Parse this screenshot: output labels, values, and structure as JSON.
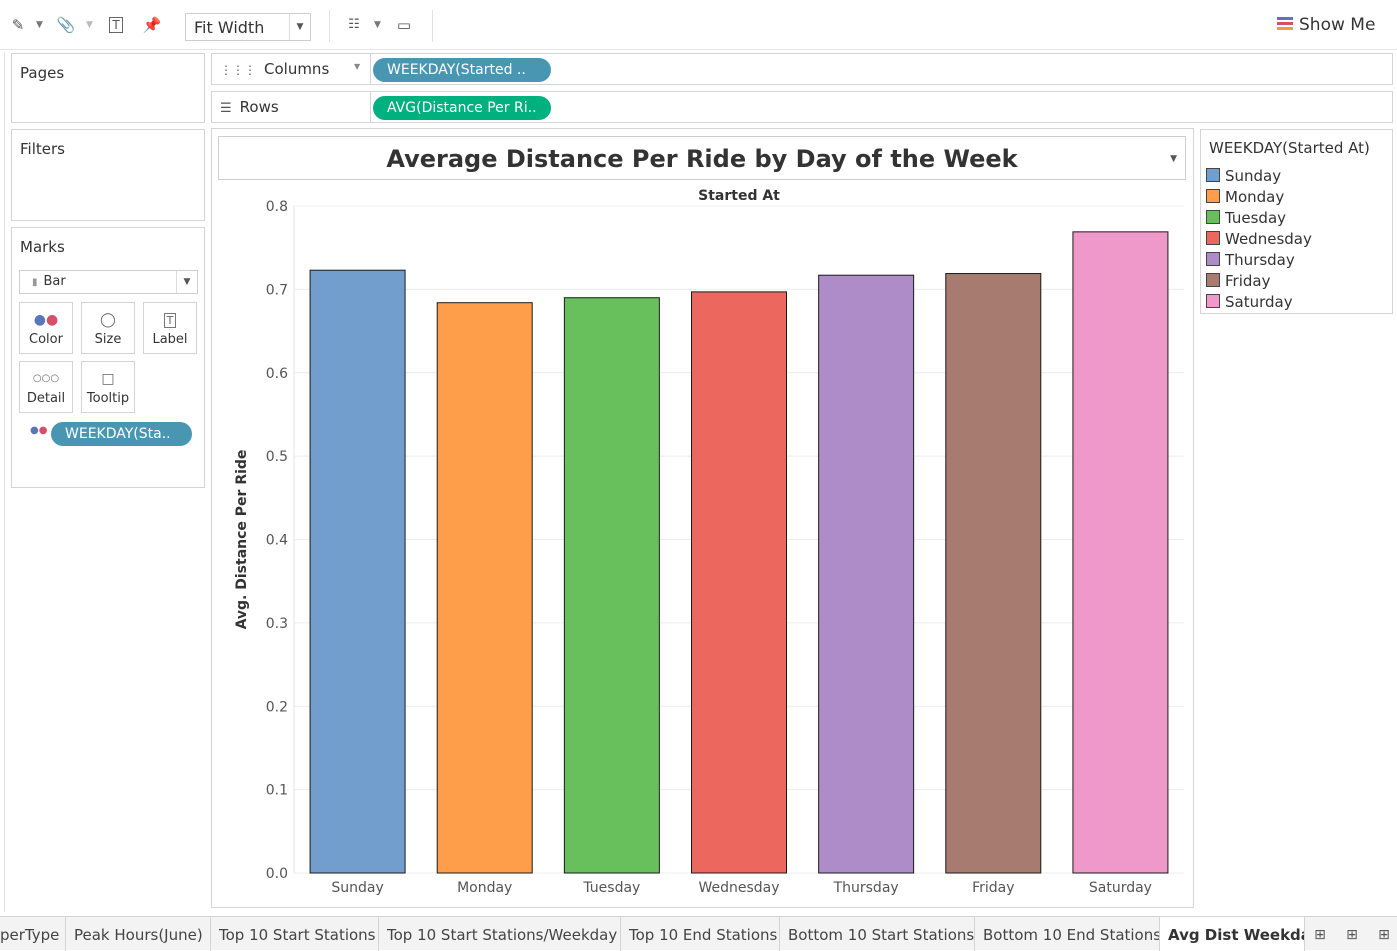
{
  "toolbar": {
    "fit_mode": "Fit Width",
    "show_me_label": "Show Me"
  },
  "panes": {
    "pages_label": "Pages",
    "filters_label": "Filters",
    "marks_label": "Marks",
    "mark_type": "Bar",
    "mark_buttons": [
      "Color",
      "Size",
      "Label",
      "Detail",
      "Tooltip"
    ],
    "color_pill": "WEEKDAY(Sta.."
  },
  "shelves": {
    "columns_label": "Columns",
    "columns_pill": "WEEKDAY(Started ..",
    "rows_label": "Rows",
    "rows_pill": "AVG(Distance Per Ri.."
  },
  "legend": {
    "title": "WEEKDAY(Started At)",
    "items": [
      {
        "label": "Sunday",
        "color": "#719ecd"
      },
      {
        "label": "Monday",
        "color": "#fe9e4b"
      },
      {
        "label": "Tuesday",
        "color": "#68c05d"
      },
      {
        "label": "Wednesday",
        "color": "#ec675e"
      },
      {
        "label": "Thursday",
        "color": "#ae8cc8"
      },
      {
        "label": "Friday",
        "color": "#a77b6f"
      },
      {
        "label": "Saturday",
        "color": "#ef98ca"
      }
    ]
  },
  "chart_data": {
    "type": "bar",
    "title": "Average Distance Per Ride by Day of the Week",
    "header": "Started At",
    "xlabel": "",
    "ylabel": "Avg. Distance Per Ride",
    "categories": [
      "Sunday",
      "Monday",
      "Tuesday",
      "Wednesday",
      "Thursday",
      "Friday",
      "Saturday"
    ],
    "values": [
      0.723,
      0.684,
      0.69,
      0.697,
      0.717,
      0.719,
      0.769
    ],
    "colors": [
      "#719ecd",
      "#fe9e4b",
      "#68c05d",
      "#ec675e",
      "#ae8cc8",
      "#a77b6f",
      "#ef98ca"
    ],
    "ylim": [
      0,
      0.8
    ],
    "yticks": [
      "0.0",
      "0.1",
      "0.2",
      "0.3",
      "0.4",
      "0.5",
      "0.6",
      "0.7",
      "0.8"
    ],
    "grid": true,
    "legend_position": "right"
  },
  "tabs": [
    "perType",
    "Peak Hours(June)",
    "Top 10 Start Stations",
    "Top 10 Start Stations/Weekday",
    "Top 10 End Stations",
    "Bottom 10 Start Stations",
    "Bottom 10 End Stations",
    "Avg Dist Weekday"
  ]
}
